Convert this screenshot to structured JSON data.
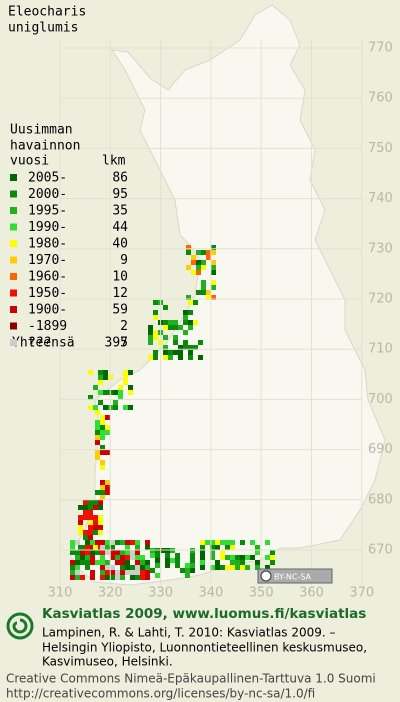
{
  "title": [
    "Eleocharis",
    "uniglumis"
  ],
  "legend": {
    "heading": [
      "Uusimman",
      "havainnon",
      "vuosi"
    ],
    "count_heading": "lkm",
    "rows": [
      {
        "period": "2005-",
        "count": 86,
        "color": "#006600"
      },
      {
        "period": "2000-",
        "count": 95,
        "color": "#0a8a0a"
      },
      {
        "period": "1995-",
        "count": 35,
        "color": "#22b022"
      },
      {
        "period": "1990-",
        "count": 44,
        "color": "#33dd33"
      },
      {
        "period": "1980-",
        "count": 40,
        "color": "#ffff00"
      },
      {
        "period": "1970-",
        "count": 9,
        "color": "#ffcc00"
      },
      {
        "period": "1960-",
        "count": 10,
        "color": "#ff6600"
      },
      {
        "period": "1950-",
        "count": 12,
        "color": "#ee1100"
      },
      {
        "period": "1900-",
        "count": 59,
        "color": "#cc0000"
      },
      {
        "period": "-1899",
        "count": 2,
        "color": "#880000"
      },
      {
        "period": "???",
        "count": 5,
        "color": "#cccccc"
      }
    ],
    "total_label": "Yhteensä",
    "total": 397
  },
  "map": {
    "northing_labels": [
      770,
      760,
      750,
      740,
      730,
      720,
      710,
      700,
      690,
      680,
      670
    ],
    "easting_labels": [
      310,
      320,
      330,
      340,
      350,
      360,
      370
    ],
    "license_badge": "BY-NC-SA"
  },
  "footer": {
    "heading": "Kasviatlas 2009, www.luomus.fi/kasviatlas",
    "citation": [
      "Lampinen, R. & Lahti, T. 2010: Kasviatlas 2009. –",
      "Helsingin Yliopisto, Luonnontieteellinen keskusmuseo,",
      "Kasvimuseo, Helsinki."
    ],
    "license": [
      "Creative Commons Nimeä-Epäkaupallinen-Tarttuva 1.0 Suomi",
      "http://creativecommons.org/licenses/by-nc-sa/1.0/fi"
    ]
  }
}
